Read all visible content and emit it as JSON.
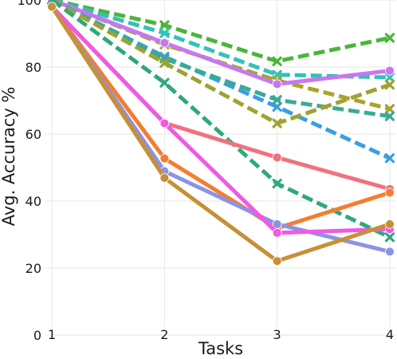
{
  "chart_data": {
    "type": "line",
    "xlabel": "Tasks",
    "ylabel": "Avg. Accuracy %",
    "x": [
      1,
      2,
      3,
      4
    ],
    "xlim": [
      0.95,
      4.05
    ],
    "ylim": [
      0,
      100
    ],
    "yticks": [
      0,
      20,
      40,
      60,
      80,
      100
    ],
    "grid": true,
    "legend": "none",
    "series": [
      {
        "color": "#4bb53b",
        "dash": true,
        "marker": "x",
        "values": [
          100,
          92.5,
          81.7,
          88.7
        ]
      },
      {
        "color": "#33c1b8",
        "dash": true,
        "marker": "x",
        "values": [
          100,
          90.1,
          77.7,
          76.9
        ]
      },
      {
        "color": "#a8a42d",
        "dash": true,
        "marker": "x",
        "values": [
          100,
          86.7,
          76.0,
          67.5
        ]
      },
      {
        "color": "#c678f0",
        "dash": false,
        "marker": "circle",
        "values": [
          100,
          87.2,
          74.9,
          78.9
        ]
      },
      {
        "color": "#3a9ee4",
        "dash": true,
        "marker": "x",
        "values": [
          100,
          83.1,
          68.1,
          52.8
        ]
      },
      {
        "color": "#3aab93",
        "dash": true,
        "marker": "x",
        "values": [
          100,
          82.5,
          70.2,
          65.3
        ]
      },
      {
        "color": "#9ea331",
        "dash": true,
        "marker": "x",
        "values": [
          100,
          81.2,
          63.2,
          74.7
        ]
      },
      {
        "color": "#2fa97a",
        "dash": true,
        "marker": "x",
        "values": [
          100,
          75.3,
          45.2,
          29.2
        ]
      },
      {
        "color": "#f0717f",
        "dash": false,
        "marker": "circle",
        "values": [
          98,
          63.3,
          53.0,
          43.6
        ]
      },
      {
        "color": "#f47d30",
        "dash": false,
        "marker": "circle",
        "values": [
          98,
          52.7,
          31.9,
          42.5
        ]
      },
      {
        "color": "#8b93e3",
        "dash": false,
        "marker": "circle",
        "values": [
          98,
          48.9,
          33.1,
          24.9
        ]
      },
      {
        "color": "#ef59e4",
        "dash": false,
        "marker": "circle",
        "values": [
          98,
          63.2,
          30.5,
          31.6
        ]
      },
      {
        "color": "#c69035",
        "dash": false,
        "marker": "circle",
        "values": [
          98,
          46.9,
          22.1,
          33.1
        ]
      }
    ]
  }
}
